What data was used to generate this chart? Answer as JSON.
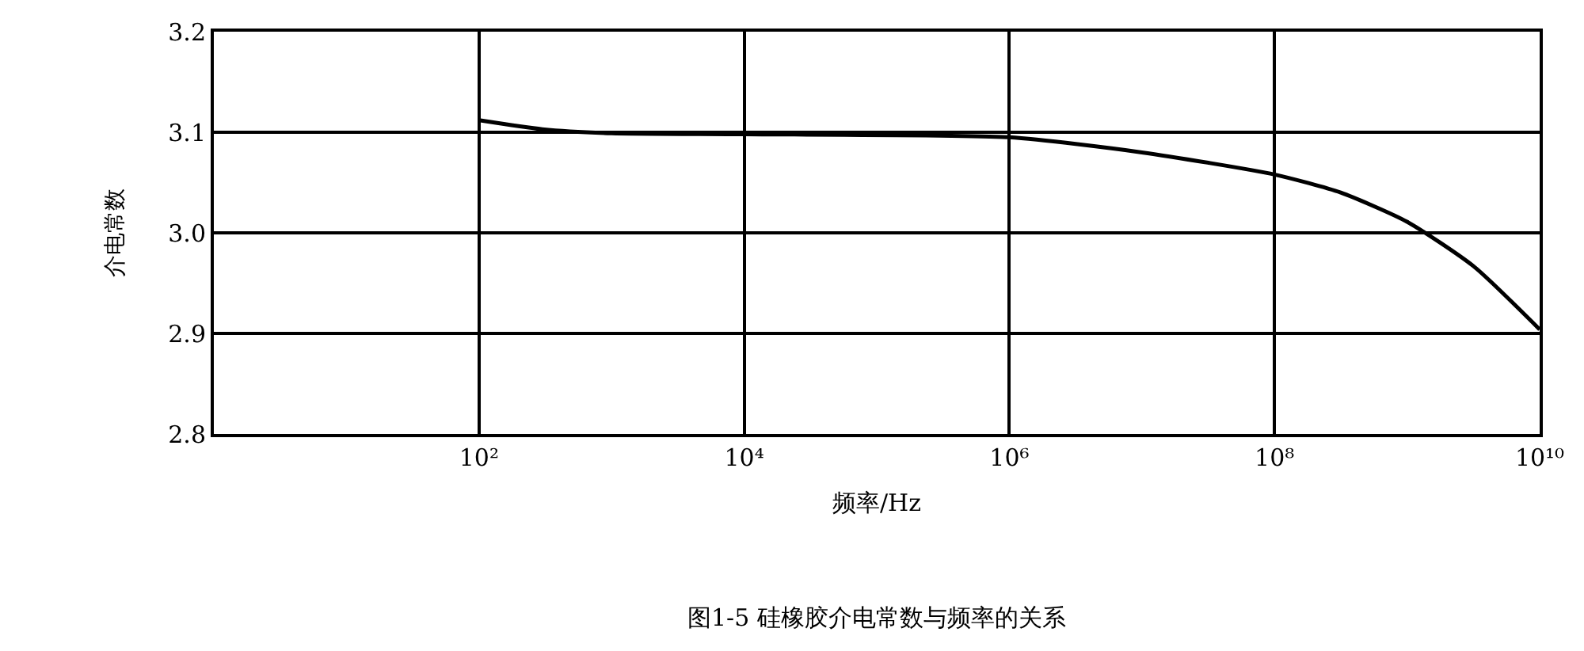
{
  "chart_data": {
    "type": "line",
    "xlabel": "频率/Hz",
    "ylabel": "介电常数",
    "annotations": [
      "图1-5 硅橡胶介电常数与频率的关系"
    ],
    "log": "x",
    "x": [
      100,
      300,
      1000,
      10000,
      1000000,
      10000000,
      100000000,
      316000000,
      1000000000,
      3160000000,
      10000000000
    ],
    "series": [
      {
        "color": "#000000",
        "values": [
          3.112,
          3.103,
          3.099,
          3.098,
          3.095,
          3.08,
          3.058,
          3.04,
          3.011,
          2.967,
          2.904
        ]
      }
    ],
    "xlim": [
      1,
      10000000000
    ],
    "xticks": [
      {
        "value": 100,
        "label": "10²"
      },
      {
        "value": 10000,
        "label": "10⁴"
      },
      {
        "value": 1000000,
        "label": "10⁶"
      },
      {
        "value": 100000000,
        "label": "10⁸"
      },
      {
        "value": 10000000000,
        "label": "10¹⁰"
      }
    ],
    "ylim": [
      2.8,
      3.2
    ],
    "yticks": [
      {
        "value": 2.8,
        "label": "2.8"
      },
      {
        "value": 2.9,
        "label": "2.9"
      },
      {
        "value": 3.0,
        "label": "3.0"
      },
      {
        "value": 3.1,
        "label": "3.1"
      },
      {
        "value": 3.2,
        "label": "3.2"
      }
    ],
    "grid": true,
    "marker": "none",
    "line_style": "solid"
  }
}
